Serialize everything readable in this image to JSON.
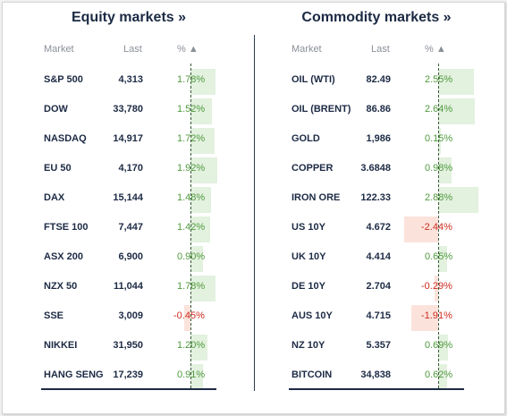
{
  "equity": {
    "title": "Equity markets »",
    "headers": {
      "market": "Market",
      "last": "Last",
      "pct": "% ▲"
    },
    "rows": [
      {
        "market": "S&P 500",
        "last": "4,313",
        "pct": "1.78%",
        "value": 1.78
      },
      {
        "market": "DOW",
        "last": "33,780",
        "pct": "1.52%",
        "value": 1.52
      },
      {
        "market": "NASDAQ",
        "last": "14,917",
        "pct": "1.72%",
        "value": 1.72
      },
      {
        "market": "EU 50",
        "last": "4,170",
        "pct": "1.92%",
        "value": 1.92
      },
      {
        "market": "DAX",
        "last": "15,144",
        "pct": "1.48%",
        "value": 1.48
      },
      {
        "market": "FTSE 100",
        "last": "7,447",
        "pct": "1.42%",
        "value": 1.42
      },
      {
        "market": "ASX 200",
        "last": "6,900",
        "pct": "0.90%",
        "value": 0.9
      },
      {
        "market": "NZX 50",
        "last": "11,044",
        "pct": "1.78%",
        "value": 1.78
      },
      {
        "market": "SSE",
        "last": "3,009",
        "pct": "-0.45%",
        "value": -0.45
      },
      {
        "market": "NIKKEI",
        "last": "31,950",
        "pct": "1.20%",
        "value": 1.2
      },
      {
        "market": "HANG SENG",
        "last": "17,239",
        "pct": "0.91%",
        "value": 0.91
      }
    ]
  },
  "commodity": {
    "title": "Commodity markets »",
    "headers": {
      "market": "Market",
      "last": "Last",
      "pct": "% ▲"
    },
    "rows": [
      {
        "market": "OIL (WTI)",
        "last": "82.49",
        "pct": "2.55%",
        "value": 2.55
      },
      {
        "market": "OIL (BRENT)",
        "last": "86.86",
        "pct": "2.64%",
        "value": 2.64
      },
      {
        "market": "GOLD",
        "last": "1,986",
        "pct": "0.15%",
        "value": 0.15
      },
      {
        "market": "COPPER",
        "last": "3.6848",
        "pct": "0.98%",
        "value": 0.98
      },
      {
        "market": "IRON ORE",
        "last": "122.33",
        "pct": "2.88%",
        "value": 2.88
      },
      {
        "market": "US 10Y",
        "last": "4.672",
        "pct": "-2.44%",
        "value": -2.44
      },
      {
        "market": "UK 10Y",
        "last": "4.414",
        "pct": "0.65%",
        "value": 0.65
      },
      {
        "market": "DE 10Y",
        "last": "2.704",
        "pct": "-0.29%",
        "value": -0.29
      },
      {
        "market": "AUS 10Y",
        "last": "4.715",
        "pct": "-1.91%",
        "value": -1.91
      },
      {
        "market": "NZ 10Y",
        "last": "5.357",
        "pct": "0.69%",
        "value": 0.69
      },
      {
        "market": "BITCOIN",
        "last": "34,838",
        "pct": "0.62%",
        "value": 0.62
      }
    ]
  },
  "colors": {
    "positive": "#4f9a3d",
    "negative": "#cf2b1f",
    "positive_bar": "#e3f1df",
    "negative_bar": "#fbe3dc"
  }
}
